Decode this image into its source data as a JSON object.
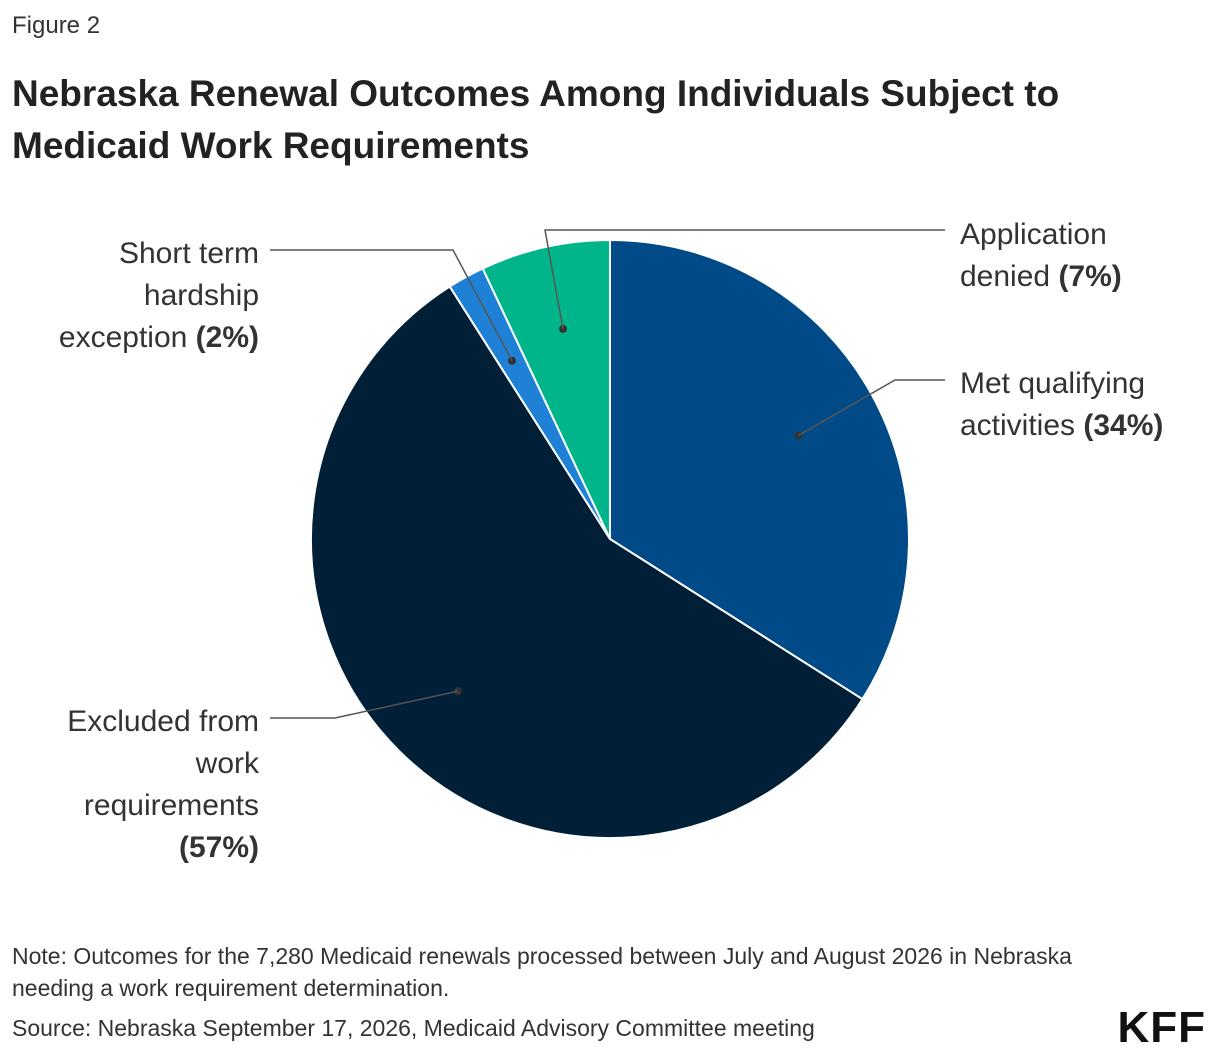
{
  "figure_label": "Figure 2",
  "chart_data": {
    "type": "pie",
    "title": "Nebraska Renewal Outcomes Among Individuals Subject to Medicaid Work Requirements",
    "slices": [
      {
        "name": "Met qualifying activities",
        "value": 34,
        "pct_label": "(34%)",
        "color": "#004b87"
      },
      {
        "name": "Excluded from work requirements",
        "value": 57,
        "pct_label": "(57%)",
        "color": "#012038"
      },
      {
        "name": "Short term hardship exception",
        "value": 2,
        "pct_label": "(2%)",
        "color": "#1f81d6"
      },
      {
        "name": "Application denied",
        "value": 7,
        "pct_label": "(7%)",
        "color": "#00b58a"
      }
    ]
  },
  "note": "Note: Outcomes for the 7,280 Medicaid renewals processed between July and August 2026 in Nebraska needing a work requirement determination.",
  "source": "Source: Nebraska September 17, 2026, Medicaid Advisory Committee meeting",
  "logo_text": "KFF"
}
